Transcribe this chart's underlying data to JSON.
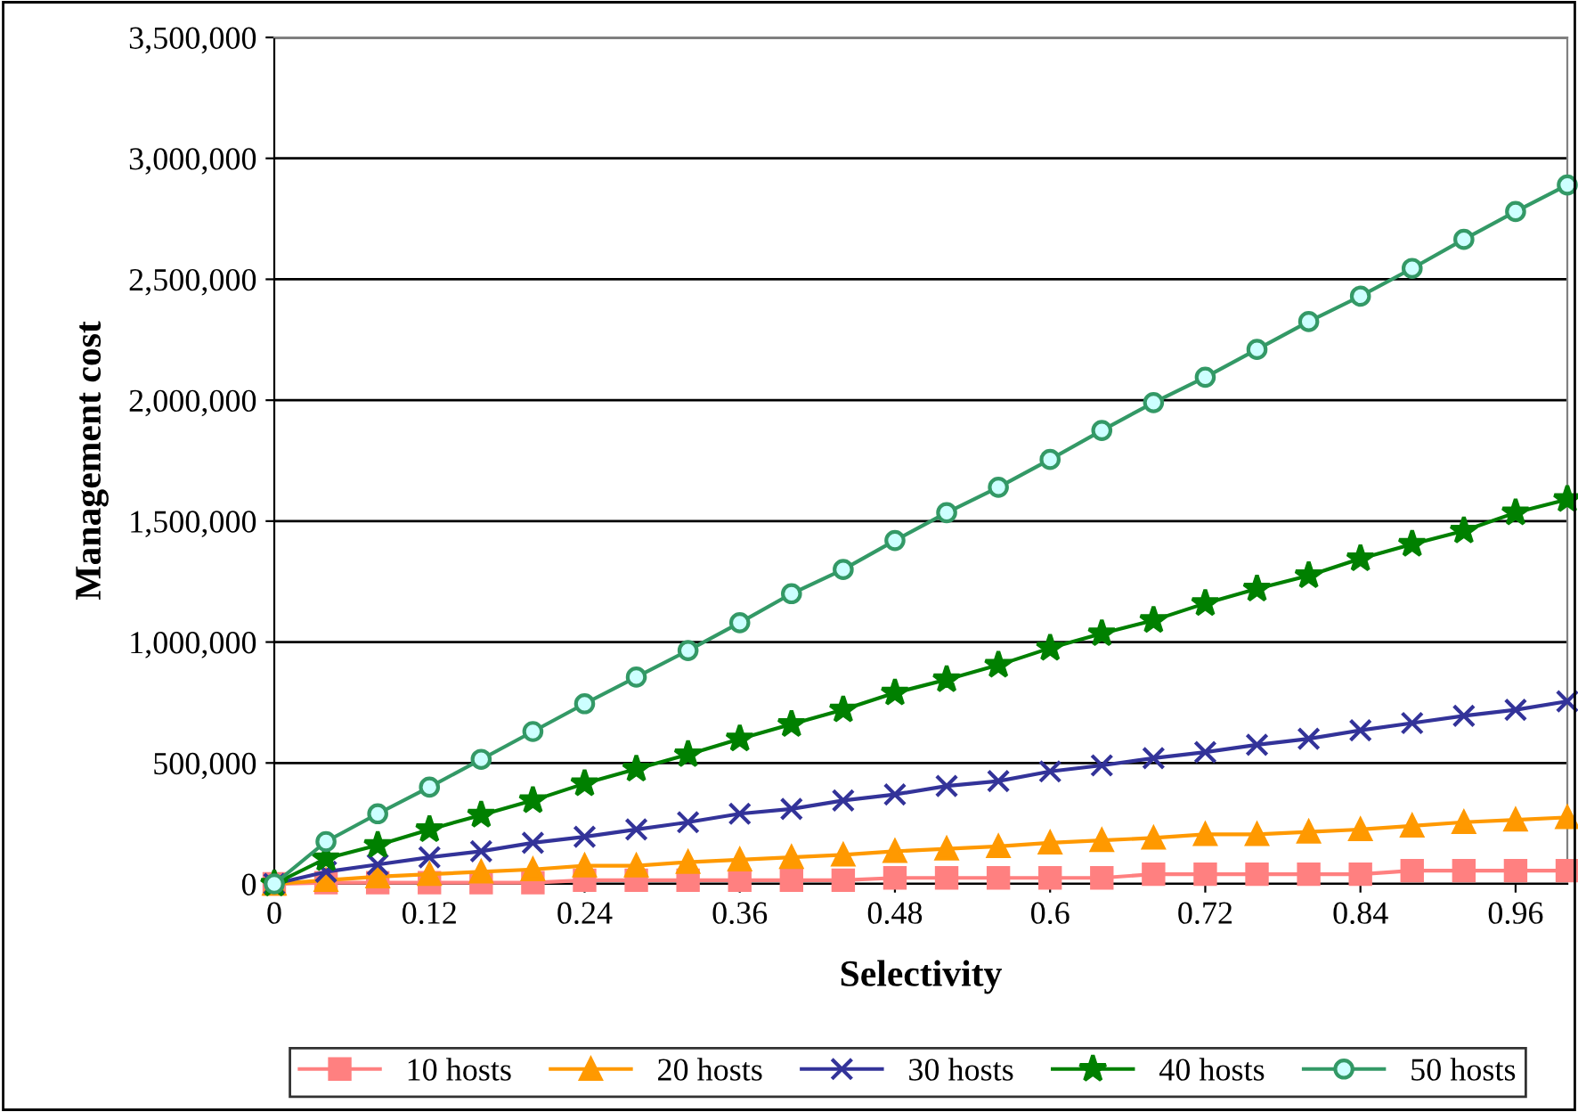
{
  "chart_data": {
    "type": "line",
    "xlabel": "Selectivity",
    "ylabel": "Management cost",
    "x": [
      0,
      0.04,
      0.08,
      0.12,
      0.16,
      0.2,
      0.24,
      0.28,
      0.32,
      0.36,
      0.4,
      0.44,
      0.48,
      0.52,
      0.56,
      0.6,
      0.64,
      0.68,
      0.72,
      0.76,
      0.8,
      0.84,
      0.88,
      0.92,
      0.96,
      1.0
    ],
    "series": [
      {
        "name": "10 hosts",
        "color": "#ff8080",
        "marker": "square",
        "values": [
          0,
          5000,
          5000,
          5000,
          5000,
          5000,
          15000,
          15000,
          15000,
          15000,
          15000,
          15000,
          25000,
          25000,
          25000,
          25000,
          25000,
          40000,
          40000,
          40000,
          40000,
          40000,
          55000,
          55000,
          55000,
          55000
        ]
      },
      {
        "name": "20 hosts",
        "color": "#ff9900",
        "marker": "triangle",
        "values": [
          0,
          15000,
          30000,
          40000,
          50000,
          60000,
          75000,
          75000,
          90000,
          100000,
          110000,
          120000,
          135000,
          145000,
          155000,
          170000,
          180000,
          190000,
          205000,
          205000,
          215000,
          225000,
          240000,
          255000,
          265000,
          275000
        ]
      },
      {
        "name": "30 hosts",
        "color": "#333399",
        "marker": "cross",
        "values": [
          0,
          50000,
          80000,
          110000,
          135000,
          170000,
          195000,
          225000,
          255000,
          290000,
          310000,
          345000,
          370000,
          405000,
          425000,
          465000,
          490000,
          520000,
          545000,
          575000,
          600000,
          635000,
          665000,
          695000,
          720000,
          755000
        ]
      },
      {
        "name": "40 hosts",
        "color": "#008000",
        "marker": "star",
        "values": [
          0,
          105000,
          160000,
          225000,
          285000,
          345000,
          415000,
          475000,
          535000,
          600000,
          660000,
          720000,
          790000,
          845000,
          905000,
          975000,
          1035000,
          1090000,
          1160000,
          1220000,
          1275000,
          1345000,
          1405000,
          1460000,
          1535000,
          1590000
        ]
      },
      {
        "name": "50 hosts",
        "color": "#339966",
        "marker": "circle",
        "values": [
          0,
          175000,
          290000,
          400000,
          515000,
          630000,
          745000,
          855000,
          965000,
          1080000,
          1200000,
          1300000,
          1420000,
          1535000,
          1640000,
          1755000,
          1875000,
          1990000,
          2095000,
          2210000,
          2325000,
          2430000,
          2545000,
          2665000,
          2780000,
          2890000
        ]
      }
    ],
    "xlim": [
      0,
      1.0
    ],
    "xticks": [
      0,
      0.12,
      0.24,
      0.36,
      0.48,
      0.6,
      0.72,
      0.84,
      0.96
    ],
    "ylim": [
      0,
      3500000
    ],
    "yticks": [
      {
        "value": 0,
        "label": "0"
      },
      {
        "value": 500000,
        "label": "500,000"
      },
      {
        "value": 1000000,
        "label": "1,000,000"
      },
      {
        "value": 1500000,
        "label": "1,500,000"
      },
      {
        "value": 2000000,
        "label": "2,000,000"
      },
      {
        "value": 2500000,
        "label": "2,500,000"
      },
      {
        "value": 3000000,
        "label": "3,000,000"
      },
      {
        "value": 3500000,
        "label": "3,500,000"
      }
    ],
    "grid": "y",
    "legend": "bottom",
    "line_style": "solid"
  }
}
